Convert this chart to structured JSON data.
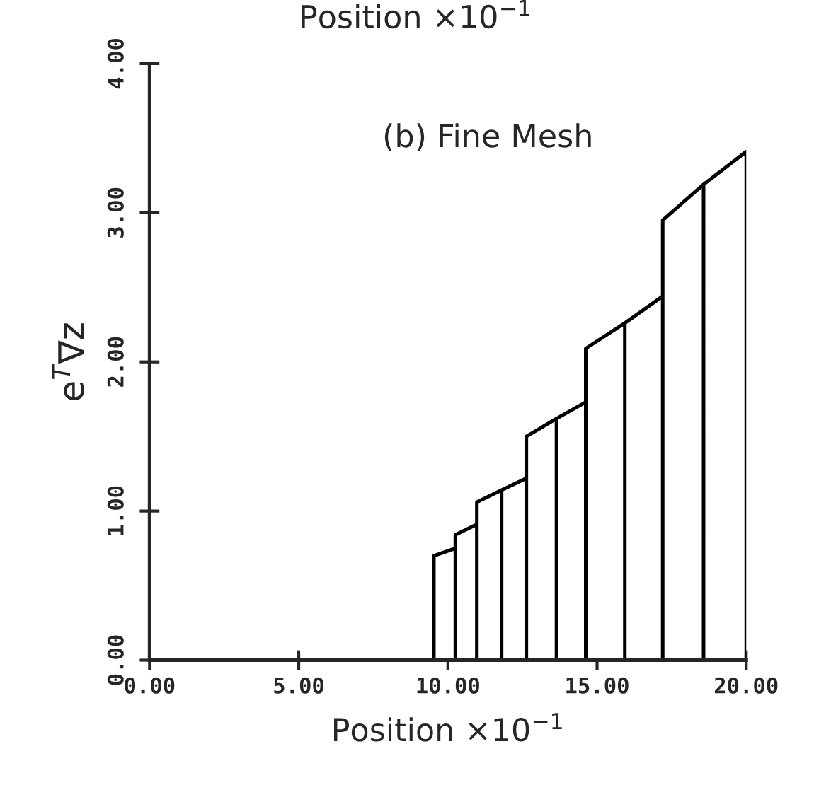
{
  "chart_data": {
    "type": "area",
    "title": "(b) Fine Mesh",
    "xlabel": "Position ×10$^{−1}$",
    "ylabel": "e$^{T}$∇z",
    "annotations": [
      "Position ×10$^{−1}$"
    ],
    "x": [
      9.53,
      9.53,
      10.25,
      10.25,
      10.25,
      10.97,
      10.97,
      10.97,
      11.8,
      11.8,
      11.8,
      12.63,
      12.63,
      12.63,
      13.64,
      13.64,
      13.64,
      14.62,
      14.62,
      14.62,
      15.93,
      15.93,
      15.93,
      17.2,
      17.2,
      17.2,
      18.57,
      18.57,
      18.57,
      20.0,
      20.0
    ],
    "series": [
      {
        "color": "#000000",
        "values": [
          0,
          0.7,
          0.75,
          0,
          0.84,
          0.91,
          0,
          1.06,
          1.14,
          0,
          1.14,
          1.22,
          0,
          1.5,
          1.62,
          0,
          1.62,
          1.73,
          0,
          2.09,
          2.26,
          0,
          2.26,
          2.44,
          0,
          2.95,
          3.19,
          0,
          3.19,
          3.41,
          0
        ]
      }
    ],
    "xlim": [
      0,
      20
    ],
    "ylim": [
      0,
      4
    ],
    "xticks": [
      {
        "value": 0,
        "label": "0.00"
      },
      {
        "value": 5,
        "label": "5.00"
      },
      {
        "value": 10,
        "label": "10.00"
      },
      {
        "value": 15,
        "label": "15.00"
      },
      {
        "value": 20,
        "label": "20.00"
      }
    ],
    "yticks": [
      {
        "value": 0,
        "label": "0.00"
      },
      {
        "value": 1,
        "label": "1.00"
      },
      {
        "value": 2,
        "label": "2.00"
      },
      {
        "value": 3,
        "label": "3.00"
      },
      {
        "value": 4,
        "label": "4.00"
      }
    ],
    "grid": false,
    "legend": false
  }
}
